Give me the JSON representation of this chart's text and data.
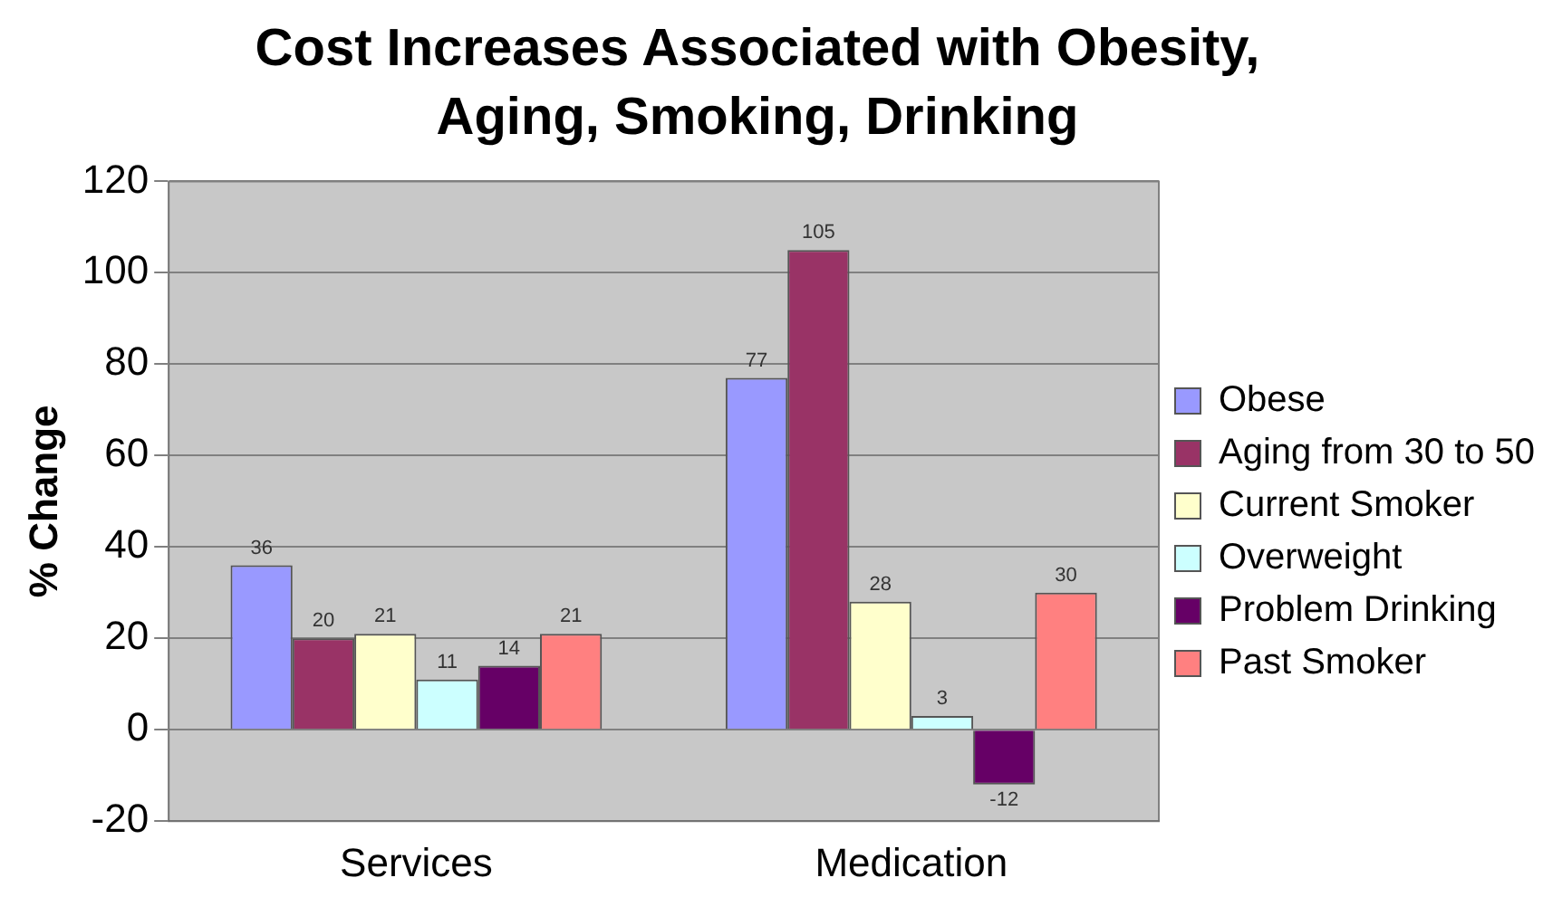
{
  "chart_data": {
    "type": "bar",
    "title": "Cost Increases Associated with Obesity, Aging, Smoking, Drinking",
    "ylabel": "% Change",
    "categories": [
      "Services",
      "Medication"
    ],
    "series": [
      {
        "name": "Obese",
        "color": "#9999ff",
        "values": [
          36,
          77
        ]
      },
      {
        "name": "Aging from 30 to 50",
        "color": "#993366",
        "values": [
          20,
          105
        ]
      },
      {
        "name": "Current Smoker",
        "color": "#ffffcc",
        "values": [
          21,
          28
        ]
      },
      {
        "name": "Overweight",
        "color": "#ccffff",
        "values": [
          11,
          3
        ]
      },
      {
        "name": "Problem Drinking",
        "color": "#660066",
        "values": [
          14,
          -12
        ]
      },
      {
        "name": "Past Smoker",
        "color": "#ff8080",
        "values": [
          21,
          30
        ]
      }
    ],
    "ylim": [
      -20,
      120
    ],
    "yticks": [
      -20,
      0,
      20,
      40,
      60,
      80,
      100,
      120
    ],
    "grid": "y",
    "legend": "right",
    "data_labels": true
  }
}
